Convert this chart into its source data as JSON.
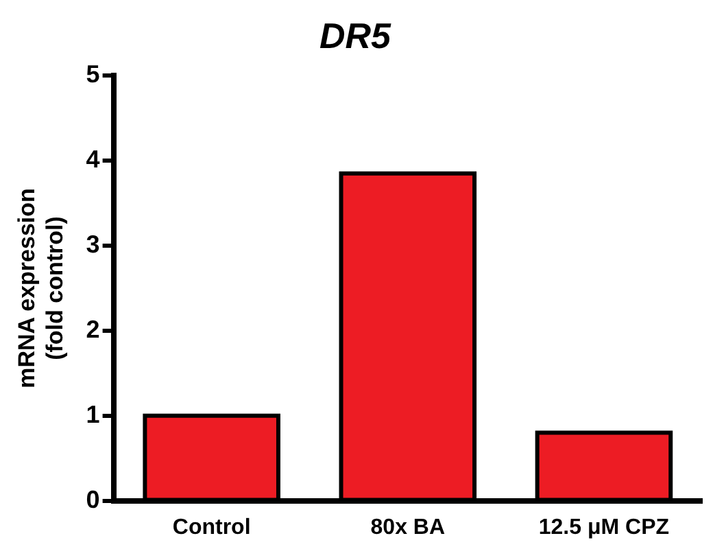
{
  "chart_data": {
    "type": "bar",
    "title": "DR5",
    "ylabel": "mRNA expression\n(fold control)",
    "categories": [
      "Control",
      "80x BA",
      "12.5 μM CPZ"
    ],
    "values": [
      1.0,
      3.85,
      0.8
    ],
    "color": "#ed1c24",
    "ylim": [
      0,
      5
    ],
    "yticks": [
      0,
      1,
      2,
      3,
      4,
      5
    ],
    "grid": false,
    "legend": false
  }
}
